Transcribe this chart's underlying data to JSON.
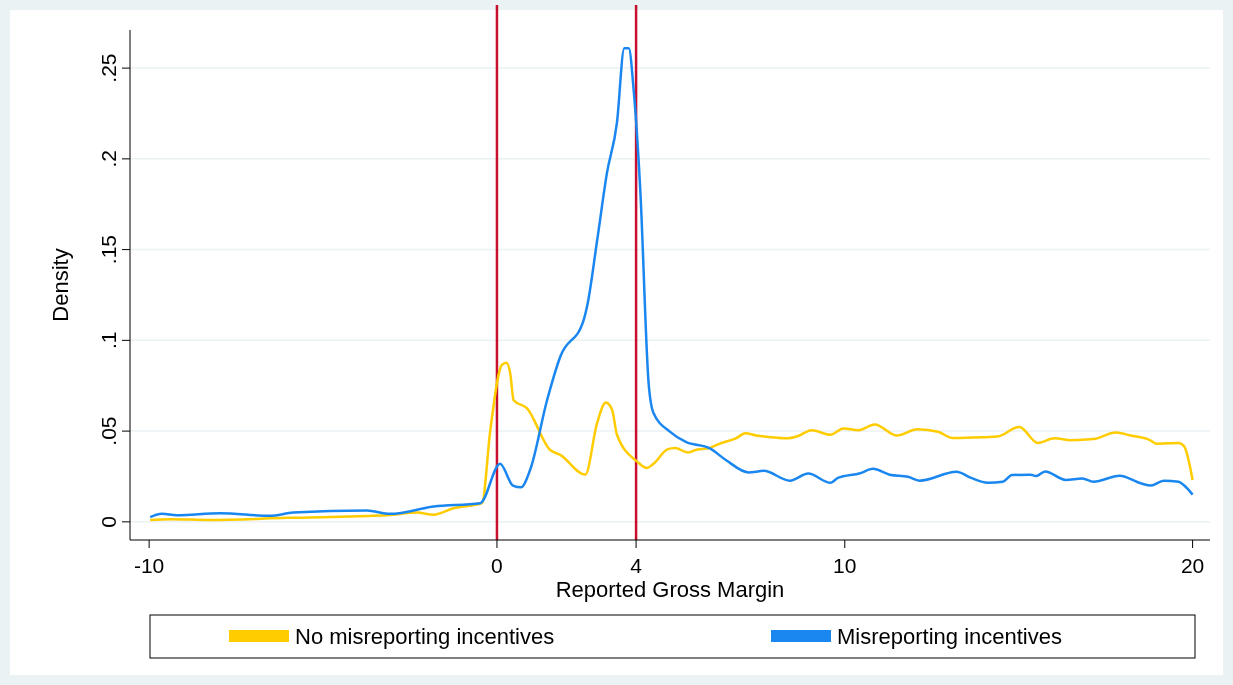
{
  "chart_data": {
    "type": "line",
    "xlabel": "Reported Gross Margin",
    "ylabel": "Density",
    "xlim": [
      -10.55,
      20.5
    ],
    "ylim": [
      -0.01,
      0.271
    ],
    "xticks": [
      -10,
      0,
      4,
      10,
      20
    ],
    "yticks": [
      0,
      {
        "value": 0.05,
        "label": ".05"
      },
      {
        "value": 0.1,
        "label": ".1"
      },
      {
        "value": 0.15,
        "label": ".15"
      },
      {
        "value": 0.2,
        "label": ".2"
      },
      {
        "value": 0.25,
        "label": ".25"
      }
    ],
    "grid": "y",
    "legend": "bottom",
    "line_style": "solid",
    "marker": "none",
    "ref_lines": [
      {
        "axis": "x",
        "value": 0,
        "color": "#c8102e"
      },
      {
        "axis": "x",
        "value": 4,
        "color": "#c8102e"
      }
    ],
    "series": [
      {
        "name": "No misreporting incentives",
        "color": "#ffcc00",
        "x": [
          -9.97,
          -9.4,
          -8.25,
          -6.04,
          -3.16,
          -2.3,
          -1.82,
          -1.25,
          -0.43,
          -0.19,
          0.14,
          0.27,
          0.38,
          0.48,
          0.86,
          1.53,
          1.82,
          2.54,
          2.88,
          3.13,
          3.31,
          3.45,
          4.03,
          4.31,
          4.5,
          4.9,
          5.12,
          5.49,
          5.76,
          6.08,
          6.39,
          6.87,
          7.14,
          7.46,
          7.89,
          8.32,
          8.64,
          9.05,
          9.59,
          9.96,
          10.39,
          10.86,
          11.5,
          12.09,
          12.68,
          13.1,
          13.96,
          14.39,
          15.02,
          15.55,
          16.03,
          16.51,
          17.15,
          17.79,
          18.22,
          18.76,
          18.96,
          19.6,
          19.76,
          20
        ],
        "values": [
          0.001,
          0.0015,
          0.001,
          0.0022,
          0.0037,
          0.0051,
          0.0039,
          0.0075,
          0.0103,
          0.0507,
          0.0865,
          0.0877,
          0.082,
          0.067,
          0.0626,
          0.0396,
          0.0369,
          0.026,
          0.0545,
          0.0657,
          0.0617,
          0.048,
          0.0332,
          0.0297,
          0.032,
          0.0399,
          0.0407,
          0.0382,
          0.0399,
          0.0405,
          0.043,
          0.046,
          0.0488,
          0.0476,
          0.0466,
          0.046,
          0.0472,
          0.0505,
          0.048,
          0.0515,
          0.0505,
          0.0537,
          0.0476,
          0.051,
          0.0496,
          0.0462,
          0.0466,
          0.047,
          0.0523,
          0.0435,
          0.046,
          0.045,
          0.0456,
          0.0492,
          0.0476,
          0.0452,
          0.0431,
          0.0435,
          0.0415,
          0.0231
        ]
      },
      {
        "name": "Misreporting incentives",
        "color": "#1a86f0",
        "x": [
          -9.97,
          -9.63,
          -9.2,
          -7.96,
          -6.52,
          -5.86,
          -3.74,
          -3.07,
          -1.82,
          -0.48,
          0.09,
          0.46,
          0.69,
          0.96,
          1.44,
          1.82,
          2.49,
          2.59,
          2.88,
          3.16,
          3.45,
          3.66,
          3.79,
          3.93,
          4.12,
          4.36,
          4.5,
          4.98,
          5.43,
          6.12,
          6.6,
          7.24,
          7.67,
          8.42,
          8.95,
          9.59,
          9.8,
          10.44,
          10.81,
          11.29,
          11.82,
          12.15,
          13.21,
          13.63,
          14.11,
          14.54,
          14.81,
          15.34,
          15.5,
          15.76,
          16.35,
          16.83,
          17.15,
          17.9,
          18.53,
          18.8,
          19.17,
          19.6,
          19.76,
          20
        ],
        "values": [
          0.0026,
          0.0044,
          0.0037,
          0.0048,
          0.0033,
          0.0051,
          0.0062,
          0.0044,
          0.0084,
          0.0103,
          0.032,
          0.02,
          0.019,
          0.029,
          0.067,
          0.091,
          0.111,
          0.1186,
          0.155,
          0.192,
          0.22,
          0.261,
          0.261,
          0.238,
          0.183,
          0.0765,
          0.06,
          0.0496,
          0.044,
          0.0405,
          0.0338,
          0.0272,
          0.0281,
          0.0227,
          0.0266,
          0.0215,
          0.0242,
          0.0268,
          0.0292,
          0.026,
          0.0248,
          0.0227,
          0.0276,
          0.0242,
          0.0215,
          0.0221,
          0.0258,
          0.026,
          0.0252,
          0.0278,
          0.0231,
          0.0239,
          0.0221,
          0.0254,
          0.0211,
          0.02,
          0.0227,
          0.0221,
          0.02,
          0.015
        ]
      }
    ]
  }
}
